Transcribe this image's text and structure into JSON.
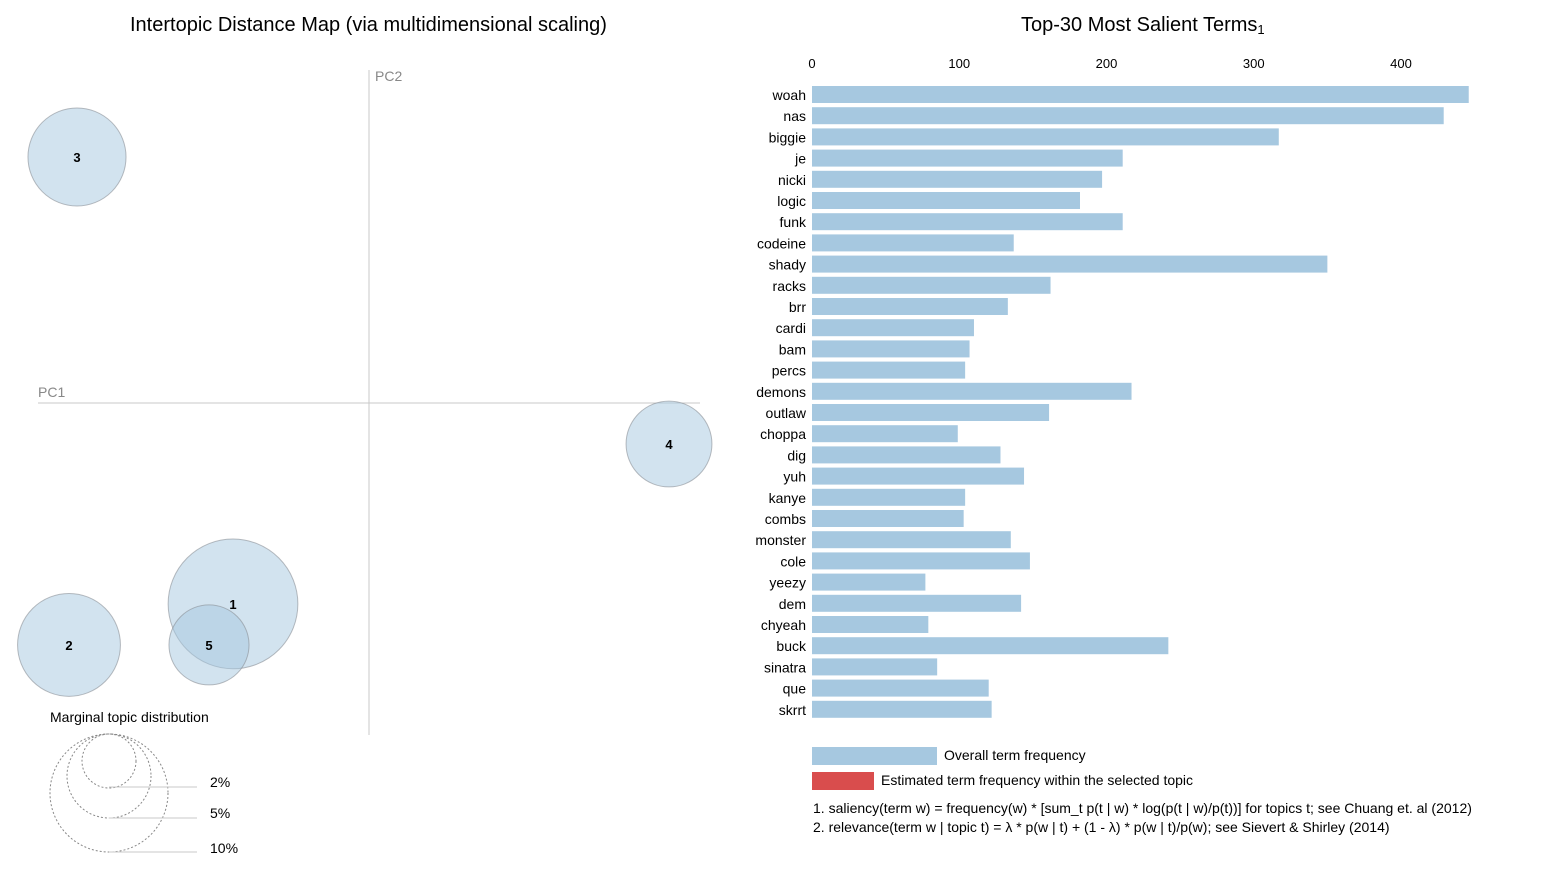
{
  "left_panel": {
    "title": "Intertopic Distance Map (via multidimensional scaling)",
    "pc1_label": "PC1",
    "pc2_label": "PC2",
    "marginal_title": "Marginal topic distribution",
    "marginal_legend": [
      "2%",
      "5%",
      "10%"
    ]
  },
  "right_panel": {
    "title": "Top-30 Most Salient Terms",
    "title_superscript": "1",
    "legend_overall": "Overall term frequency",
    "legend_topic": "Estimated term frequency within the selected topic",
    "footnote_1": "1. saliency(term w) = frequency(w) * [sum_t p(t | w) * log(p(t | w)/p(t))] for topics t; see Chuang et. al (2012)",
    "footnote_2": "2. relevance(term w | topic t) = λ * p(w | t) + (1 - λ) * p(w | t)/p(w); see Sievert & Shirley (2014)"
  },
  "colors": {
    "bar": "#a6c8e0",
    "topic_bar": "#d94d4d",
    "circle_fill": "#a6c8e0",
    "circle_stroke": "#8a8f96",
    "axis": "#c8c8c8"
  },
  "chart_data": [
    {
      "type": "scatter",
      "title": "Intertopic Distance Map (via multidimensional scaling)",
      "xlabel": "PC1",
      "ylabel": "PC2",
      "note": "bubble chart; size = marginal topic distribution",
      "points": [
        {
          "topic": "1",
          "pc1": -0.34,
          "pc2": -0.49,
          "size_pct": 10.5
        },
        {
          "topic": "2",
          "pc1": -0.75,
          "pc2": -0.59,
          "size_pct": 6.6
        },
        {
          "topic": "3",
          "pc1": -0.73,
          "pc2": 0.6,
          "size_pct": 6.0
        },
        {
          "topic": "4",
          "pc1": 0.75,
          "pc2": -0.1,
          "size_pct": 4.6
        },
        {
          "topic": "5",
          "pc1": -0.4,
          "pc2": -0.59,
          "size_pct": 4.0
        }
      ]
    },
    {
      "type": "bar",
      "orientation": "horizontal",
      "title": "Top-30 Most Salient Terms",
      "categories": [
        "woah",
        "nas",
        "biggie",
        "je",
        "nicki",
        "logic",
        "funk",
        "codeine",
        "shady",
        "racks",
        "brr",
        "cardi",
        "bam",
        "percs",
        "demons",
        "outlaw",
        "choppa",
        "dig",
        "yuh",
        "kanye",
        "combs",
        "monster",
        "cole",
        "yeezy",
        "dem",
        "chyeah",
        "buck",
        "sinatra",
        "que",
        "skrrt"
      ],
      "series": [
        {
          "name": "Overall term frequency",
          "values": [
            446,
            429,
            317,
            211,
            197,
            182,
            211,
            137,
            350,
            162,
            133,
            110,
            107,
            104,
            217,
            161,
            99,
            128,
            144,
            104,
            103,
            135,
            148,
            77,
            142,
            79,
            242,
            85,
            120,
            122
          ]
        }
      ],
      "xticks": [
        0,
        100,
        200,
        300,
        400
      ],
      "xlim": [
        0,
        460
      ]
    }
  ]
}
